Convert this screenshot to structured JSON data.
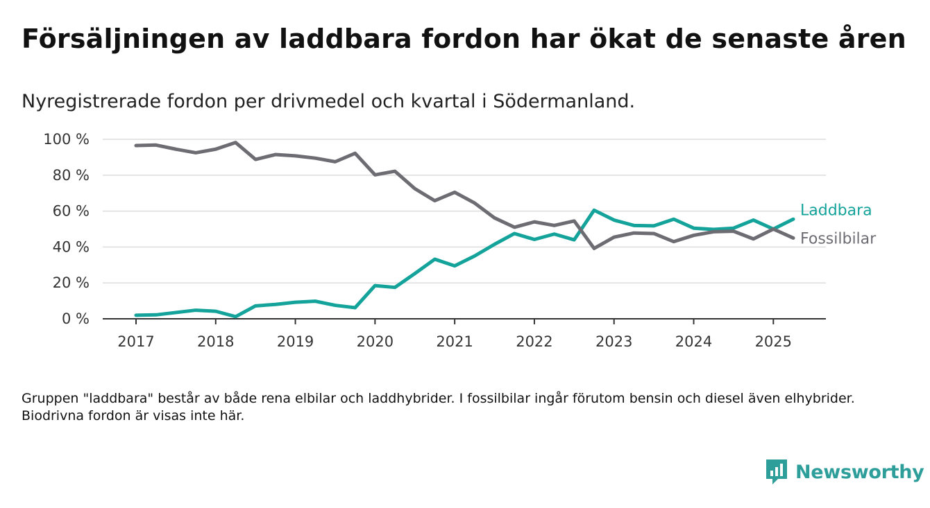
{
  "title": "Försäljningen av laddbara fordon har ökat de senaste åren",
  "subtitle": "Nyregistrerade fordon per drivmedel och kvartal i Södermanland.",
  "note": "Gruppen \"laddbara\" består av både rena elbilar och laddhybrider. I fossilbilar ingår förutom bensin och diesel även elhybrider. Biodrivna fordon är visas inte här.",
  "brand": {
    "name": "Newsworthy",
    "icon": "newsworthy-logo-icon",
    "color": "#2e9e9b"
  },
  "chart_data": {
    "type": "line",
    "x": [
      "2017-Q1",
      "2017-Q2",
      "2017-Q3",
      "2017-Q4",
      "2018-Q1",
      "2018-Q2",
      "2018-Q3",
      "2018-Q4",
      "2019-Q1",
      "2019-Q2",
      "2019-Q3",
      "2019-Q4",
      "2020-Q1",
      "2020-Q2",
      "2020-Q3",
      "2020-Q4",
      "2021-Q1",
      "2021-Q2",
      "2021-Q3",
      "2021-Q4",
      "2022-Q1",
      "2022-Q2",
      "2022-Q3",
      "2022-Q4",
      "2023-Q1",
      "2023-Q2",
      "2023-Q3",
      "2023-Q4",
      "2024-Q1",
      "2024-Q2",
      "2024-Q3",
      "2024-Q4",
      "2025-Q1",
      "2025-Q2"
    ],
    "x_ticks": [
      "2017",
      "2018",
      "2019",
      "2020",
      "2021",
      "2022",
      "2023",
      "2024",
      "2025"
    ],
    "y_ticks": [
      "0 %",
      "20 %",
      "40 %",
      "60 %",
      "80 %",
      "100 %"
    ],
    "ylim": [
      0,
      100
    ],
    "grid": true,
    "series": [
      {
        "name": "Fossilbilar",
        "color": "#6d6c72",
        "values": [
          96.5,
          96.8,
          94.5,
          92.5,
          94.5,
          98.2,
          88.8,
          91.5,
          90.8,
          89.5,
          87.5,
          92.2,
          80.2,
          82.2,
          72.5,
          65.8,
          70.5,
          64.5,
          56.2,
          51.0,
          54.0,
          52.0,
          54.5,
          39.2,
          45.5,
          47.8,
          47.5,
          43.0,
          46.5,
          48.5,
          48.8,
          44.5,
          50.0,
          45.0
        ]
      },
      {
        "name": "Laddbara",
        "color": "#14a39a",
        "values": [
          2.0,
          2.2,
          3.5,
          4.8,
          4.2,
          1.2,
          7.2,
          8.0,
          9.2,
          9.8,
          7.5,
          6.2,
          18.5,
          17.5,
          25.2,
          33.2,
          29.5,
          35.0,
          41.5,
          47.5,
          44.2,
          47.2,
          44.0,
          60.5,
          55.0,
          52.0,
          51.8,
          55.5,
          50.5,
          49.8,
          50.5,
          55.0,
          50.0,
          55.5
        ]
      }
    ]
  }
}
